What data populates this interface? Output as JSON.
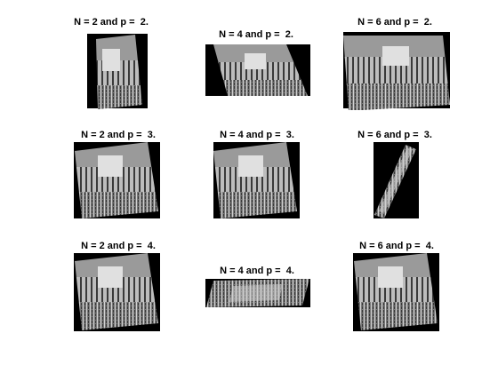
{
  "figure": {
    "panels": [
      {
        "title": "N = 2 and p =  2."
      },
      {
        "title": "N = 4 and p =  2."
      },
      {
        "title": "N = 6 and p =  2."
      },
      {
        "title": "N = 2 and p =  3."
      },
      {
        "title": "N = 4 and p =  3."
      },
      {
        "title": "N = 6 and p =  3."
      },
      {
        "title": "N = 2 and p =  4."
      },
      {
        "title": "N = 4 and p =  4."
      },
      {
        "title": "N = 6 and p =  4."
      }
    ]
  },
  "colors": {
    "background": "#ffffff",
    "frame": "#000000",
    "sky": "#9a9a9a",
    "structure": "#d8d8d8",
    "dark": "#2a2a2a",
    "grass": "#6e6e6e"
  }
}
